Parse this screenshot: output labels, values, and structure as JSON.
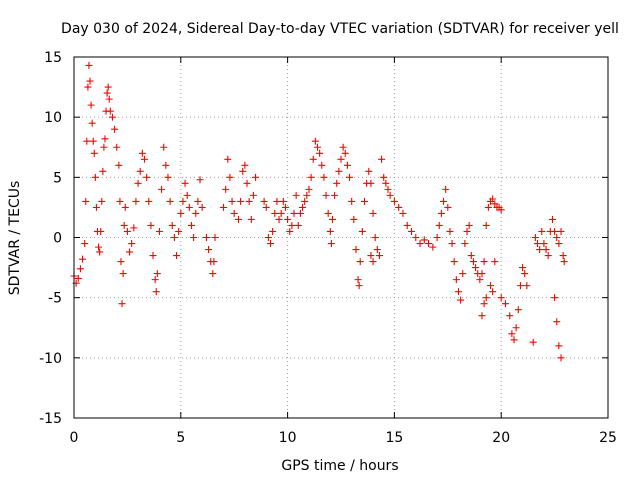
{
  "chart_data": {
    "type": "scatter",
    "title": "Day 030 of 2024, Sidereal Day-to-day VTEC variation (SDTVAR) for receiver yell",
    "xlabel": "GPS time / hours",
    "ylabel": "SDTVAR / TECUs",
    "xlim": [
      0,
      25
    ],
    "ylim": [
      -15,
      15
    ],
    "x_ticks": [
      0,
      5,
      10,
      15,
      20,
      25
    ],
    "y_ticks": [
      -15,
      -10,
      -5,
      0,
      5,
      10,
      15
    ],
    "x_tick_labels": [
      "0",
      "5",
      "10",
      "15",
      "20",
      "25"
    ],
    "y_tick_labels": [
      "-15",
      "-10",
      "-5",
      "0",
      "5",
      "10",
      "15"
    ],
    "grid": true,
    "marker": "+",
    "series": [
      {
        "name": "SDTVAR",
        "color": "#ff0000",
        "points": [
          [
            0.0,
            -3.2
          ],
          [
            0.1,
            -3.8
          ],
          [
            0.2,
            -3.4
          ],
          [
            0.3,
            -2.6
          ],
          [
            0.4,
            -1.8
          ],
          [
            0.5,
            -0.5
          ],
          [
            0.55,
            3.0
          ],
          [
            0.6,
            8.0
          ],
          [
            0.65,
            12.5
          ],
          [
            0.7,
            14.3
          ],
          [
            0.75,
            13.0
          ],
          [
            0.8,
            11.0
          ],
          [
            0.85,
            9.5
          ],
          [
            0.9,
            8.0
          ],
          [
            0.95,
            7.0
          ],
          [
            1.0,
            5.0
          ],
          [
            1.05,
            2.5
          ],
          [
            1.1,
            0.5
          ],
          [
            1.15,
            -0.8
          ],
          [
            1.2,
            -1.2
          ],
          [
            1.25,
            0.5
          ],
          [
            1.3,
            3.0
          ],
          [
            1.35,
            5.5
          ],
          [
            1.4,
            7.5
          ],
          [
            1.45,
            8.2
          ],
          [
            1.5,
            10.5
          ],
          [
            1.55,
            12.0
          ],
          [
            1.6,
            12.5
          ],
          [
            1.65,
            11.5
          ],
          [
            1.7,
            10.5
          ],
          [
            1.8,
            10.0
          ],
          [
            1.9,
            9.0
          ],
          [
            2.0,
            7.5
          ],
          [
            2.1,
            6.0
          ],
          [
            2.15,
            3.0
          ],
          [
            2.2,
            -2.0
          ],
          [
            2.25,
            -5.5
          ],
          [
            2.3,
            -3.0
          ],
          [
            2.35,
            1.0
          ],
          [
            2.4,
            2.5
          ],
          [
            2.5,
            0.5
          ],
          [
            2.6,
            -1.2
          ],
          [
            2.7,
            -0.5
          ],
          [
            2.8,
            0.8
          ],
          [
            2.9,
            3.0
          ],
          [
            3.0,
            4.5
          ],
          [
            3.1,
            5.5
          ],
          [
            3.2,
            7.0
          ],
          [
            3.3,
            6.5
          ],
          [
            3.4,
            5.0
          ],
          [
            3.5,
            3.0
          ],
          [
            3.6,
            1.0
          ],
          [
            3.7,
            -1.5
          ],
          [
            3.8,
            -3.5
          ],
          [
            3.85,
            -4.5
          ],
          [
            3.9,
            -3.0
          ],
          [
            4.0,
            0.5
          ],
          [
            4.1,
            4.0
          ],
          [
            4.2,
            7.5
          ],
          [
            4.3,
            6.0
          ],
          [
            4.4,
            5.0
          ],
          [
            4.5,
            3.0
          ],
          [
            4.6,
            1.0
          ],
          [
            4.7,
            0.0
          ],
          [
            4.8,
            -1.5
          ],
          [
            4.9,
            0.5
          ],
          [
            5.0,
            2.0
          ],
          [
            5.1,
            3.0
          ],
          [
            5.2,
            4.5
          ],
          [
            5.3,
            3.5
          ],
          [
            5.4,
            2.5
          ],
          [
            5.5,
            1.0
          ],
          [
            5.6,
            0.0
          ],
          [
            5.7,
            2.0
          ],
          [
            5.8,
            3.0
          ],
          [
            5.9,
            4.8
          ],
          [
            6.0,
            2.5
          ],
          [
            6.2,
            0.0
          ],
          [
            6.3,
            -1.0
          ],
          [
            6.4,
            -2.0
          ],
          [
            6.5,
            -3.0
          ],
          [
            6.55,
            -2.0
          ],
          [
            6.6,
            0.0
          ],
          [
            7.0,
            2.5
          ],
          [
            7.1,
            4.0
          ],
          [
            7.2,
            6.5
          ],
          [
            7.3,
            5.0
          ],
          [
            7.4,
            3.0
          ],
          [
            7.5,
            2.0
          ],
          [
            7.7,
            1.5
          ],
          [
            7.8,
            3.0
          ],
          [
            7.9,
            5.5
          ],
          [
            8.0,
            6.0
          ],
          [
            8.1,
            4.5
          ],
          [
            8.2,
            3.0
          ],
          [
            8.3,
            1.5
          ],
          [
            8.4,
            3.5
          ],
          [
            8.5,
            5.0
          ],
          [
            8.9,
            3.0
          ],
          [
            9.0,
            2.5
          ],
          [
            9.1,
            0.0
          ],
          [
            9.2,
            -0.5
          ],
          [
            9.3,
            0.5
          ],
          [
            9.4,
            2.0
          ],
          [
            9.5,
            3.0
          ],
          [
            9.6,
            1.5
          ],
          [
            9.7,
            2.0
          ],
          [
            9.8,
            3.0
          ],
          [
            9.9,
            2.5
          ],
          [
            10.0,
            1.5
          ],
          [
            10.1,
            0.5
          ],
          [
            10.2,
            1.0
          ],
          [
            10.3,
            2.0
          ],
          [
            10.4,
            3.5
          ],
          [
            10.5,
            1.0
          ],
          [
            10.6,
            2.0
          ],
          [
            10.7,
            2.5
          ],
          [
            10.8,
            3.0
          ],
          [
            10.9,
            3.5
          ],
          [
            11.0,
            4.0
          ],
          [
            11.1,
            5.0
          ],
          [
            11.2,
            6.5
          ],
          [
            11.3,
            8.0
          ],
          [
            11.4,
            7.5
          ],
          [
            11.5,
            7.0
          ],
          [
            11.6,
            6.0
          ],
          [
            11.7,
            5.0
          ],
          [
            11.8,
            3.5
          ],
          [
            11.9,
            2.0
          ],
          [
            12.0,
            0.5
          ],
          [
            12.05,
            -0.5
          ],
          [
            12.1,
            1.5
          ],
          [
            12.2,
            3.5
          ],
          [
            12.3,
            4.5
          ],
          [
            12.4,
            5.5
          ],
          [
            12.5,
            6.5
          ],
          [
            12.6,
            7.5
          ],
          [
            12.7,
            7.0
          ],
          [
            12.8,
            6.0
          ],
          [
            12.9,
            5.0
          ],
          [
            13.0,
            3.0
          ],
          [
            13.1,
            1.5
          ],
          [
            13.2,
            -1.0
          ],
          [
            13.3,
            -3.5
          ],
          [
            13.35,
            -4.0
          ],
          [
            13.4,
            -2.0
          ],
          [
            13.5,
            0.5
          ],
          [
            13.6,
            3.0
          ],
          [
            13.7,
            4.5
          ],
          [
            13.8,
            5.5
          ],
          [
            13.9,
            4.5
          ],
          [
            14.0,
            2.0
          ],
          [
            14.1,
            0.0
          ],
          [
            14.2,
            -1.0
          ],
          [
            14.3,
            -1.5
          ],
          [
            14.0,
            -2.0
          ],
          [
            13.9,
            -1.5
          ],
          [
            14.4,
            6.5
          ],
          [
            14.5,
            5.0
          ],
          [
            14.6,
            4.5
          ],
          [
            14.7,
            4.0
          ],
          [
            14.8,
            3.5
          ],
          [
            15.0,
            3.0
          ],
          [
            15.2,
            2.5
          ],
          [
            15.4,
            2.0
          ],
          [
            15.6,
            1.0
          ],
          [
            15.8,
            0.5
          ],
          [
            16.0,
            0.0
          ],
          [
            16.2,
            -0.5
          ],
          [
            16.4,
            -0.2
          ],
          [
            16.6,
            -0.5
          ],
          [
            16.8,
            -0.8
          ],
          [
            17.0,
            0.0
          ],
          [
            17.1,
            1.0
          ],
          [
            17.2,
            2.0
          ],
          [
            17.3,
            3.0
          ],
          [
            17.4,
            4.0
          ],
          [
            17.5,
            2.5
          ],
          [
            17.6,
            0.5
          ],
          [
            17.7,
            -0.5
          ],
          [
            17.8,
            -2.0
          ],
          [
            17.9,
            -3.5
          ],
          [
            18.0,
            -4.5
          ],
          [
            18.1,
            -5.2
          ],
          [
            18.2,
            -3.0
          ],
          [
            18.3,
            -0.5
          ],
          [
            18.4,
            0.5
          ],
          [
            18.5,
            1.0
          ],
          [
            18.6,
            -1.5
          ],
          [
            18.7,
            -2.0
          ],
          [
            18.8,
            -2.5
          ],
          [
            18.9,
            -3.0
          ],
          [
            19.0,
            -3.5
          ],
          [
            19.1,
            -3.0
          ],
          [
            19.2,
            -2.0
          ],
          [
            19.3,
            1.0
          ],
          [
            19.4,
            2.5
          ],
          [
            19.5,
            3.0
          ],
          [
            19.6,
            3.2
          ],
          [
            19.7,
            2.8
          ],
          [
            19.8,
            2.5
          ],
          [
            19.9,
            2.5
          ],
          [
            20.0,
            2.3
          ],
          [
            19.7,
            -2.0
          ],
          [
            19.5,
            -4.0
          ],
          [
            19.3,
            -5.0
          ],
          [
            19.1,
            -6.5
          ],
          [
            19.2,
            -5.5
          ],
          [
            19.6,
            -4.5
          ],
          [
            20.0,
            -5.0
          ],
          [
            20.2,
            -5.5
          ],
          [
            20.4,
            -6.5
          ],
          [
            20.5,
            -8.0
          ],
          [
            20.6,
            -8.5
          ],
          [
            20.7,
            -7.5
          ],
          [
            20.8,
            -6.0
          ],
          [
            20.9,
            -4.0
          ],
          [
            21.0,
            -2.5
          ],
          [
            21.1,
            -3.0
          ],
          [
            21.2,
            -4.0
          ],
          [
            21.5,
            -8.7
          ],
          [
            21.6,
            0.0
          ],
          [
            21.7,
            -0.5
          ],
          [
            21.8,
            -1.0
          ],
          [
            21.9,
            0.5
          ],
          [
            22.0,
            -0.5
          ],
          [
            22.1,
            -1.0
          ],
          [
            22.2,
            -1.5
          ],
          [
            22.3,
            0.5
          ],
          [
            22.4,
            1.5
          ],
          [
            22.5,
            0.5
          ],
          [
            22.6,
            0.0
          ],
          [
            22.7,
            -0.5
          ],
          [
            22.8,
            0.5
          ],
          [
            22.9,
            -1.5
          ],
          [
            22.95,
            -2.0
          ],
          [
            22.5,
            -5.0
          ],
          [
            22.6,
            -7.0
          ],
          [
            22.7,
            -9.0
          ],
          [
            22.8,
            -10.0
          ]
        ]
      }
    ]
  }
}
